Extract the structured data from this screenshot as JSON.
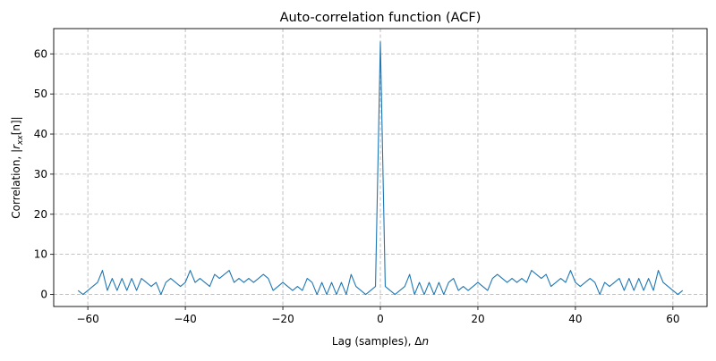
{
  "chart_data": {
    "type": "line",
    "title": "Auto-correlation function (ACF)",
    "xlabel_prefix": "Lag (samples), Δ",
    "xlabel_var": "n",
    "ylabel_text": "Correlation, |",
    "ylabel_r": "r",
    "ylabel_sub": "xx",
    "ylabel_bracket": "[n]|",
    "xlim": [
      -67,
      67
    ],
    "ylim": [
      -3,
      66.3
    ],
    "xticks": [
      -60,
      -40,
      -20,
      0,
      20,
      40,
      60
    ],
    "yticks": [
      0,
      10,
      20,
      30,
      40,
      50,
      60
    ],
    "grid": true,
    "line_color": "#1f77b4",
    "x_start": -62,
    "x_end": 62,
    "values": [
      1,
      0,
      1,
      2,
      3,
      6,
      1,
      4,
      1,
      4,
      1,
      4,
      1,
      4,
      3,
      2,
      3,
      0,
      3,
      4,
      3,
      2,
      3,
      6,
      3,
      4,
      3,
      2,
      5,
      4,
      5,
      6,
      3,
      4,
      3,
      4,
      3,
      4,
      5,
      4,
      1,
      2,
      3,
      2,
      1,
      2,
      1,
      4,
      3,
      0,
      3,
      0,
      3,
      0,
      3,
      0,
      5,
      2,
      1,
      0,
      1,
      2,
      63,
      2,
      1,
      0,
      1,
      2,
      5,
      0,
      3,
      0,
      3,
      0,
      3,
      0,
      3,
      4,
      1,
      2,
      1,
      2,
      3,
      2,
      1,
      4,
      5,
      4,
      3,
      4,
      3,
      4,
      3,
      6,
      5,
      4,
      5,
      2,
      3,
      4,
      3,
      6,
      3,
      2,
      3,
      4,
      3,
      0,
      3,
      2,
      3,
      4,
      1,
      4,
      1,
      4,
      1,
      4,
      1,
      6,
      3,
      2,
      1,
      0,
      1
    ]
  }
}
